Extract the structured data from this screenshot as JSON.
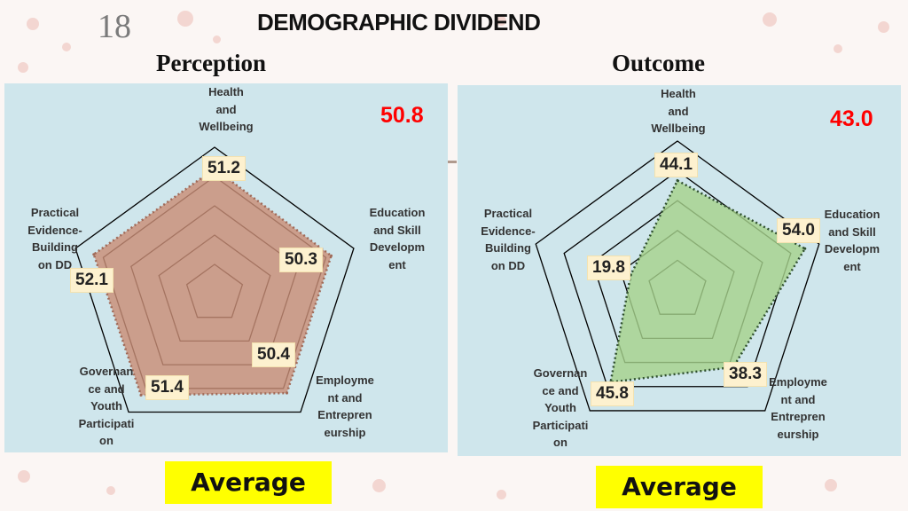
{
  "slide": {
    "number": "18",
    "title": "DEMOGRAPHIC DIVIDEND"
  },
  "colors": {
    "perception_fill": "#c98e76",
    "perception_stroke": "#a06a58",
    "outcome_fill": "#a6d28c",
    "outcome_stroke": "#2f4f2f",
    "grid": "#000000",
    "panel_bg": "#cfe6ec",
    "average_score": "#ff0000",
    "average_label_bg": "#ffff00"
  },
  "chart_data": [
    {
      "type": "radar",
      "title": "Perception",
      "axes": [
        "Health and Wellbeing",
        "Education and Skill Developm ent",
        "Employme nt and Entrepren eurship",
        "Governan ce and Youth Participati on",
        "Practical Evidence-Building on DD"
      ],
      "values": [
        51.2,
        50.3,
        50.4,
        51.4,
        52.1
      ],
      "value_labels": [
        "51.2",
        "50.3",
        "50.4",
        "51.4",
        "52.1"
      ],
      "average": "50.8",
      "average_label": "Average",
      "range": [
        0,
        60
      ],
      "grid_rings": 5,
      "outline": "dotted"
    },
    {
      "type": "radar",
      "title": "Outcome",
      "axes": [
        "Health and Wellbeing",
        "Education and Skill Developm ent",
        "Employme nt and Entrepren eurship",
        "Governan ce and Youth Participati on",
        "Practical Evidence-Building on DD"
      ],
      "values": [
        44.1,
        54.0,
        38.3,
        45.8,
        19.8
      ],
      "value_labels": [
        "44.1",
        "54.0",
        "38.3",
        "45.8",
        "19.8"
      ],
      "average": "43.0",
      "average_label": "Average",
      "range": [
        0,
        60
      ],
      "grid_rings": 5,
      "outline": "dotted"
    }
  ],
  "axis_label_lines": {
    "health": [
      "Health",
      "and",
      "Wellbeing"
    ],
    "education": [
      "Education",
      "and Skill",
      "Developm",
      "ent"
    ],
    "employment": [
      "Employme",
      "nt and",
      "Entrepren",
      "eurship"
    ],
    "governance": [
      "Governan",
      "ce and",
      "Youth",
      "Participati",
      "on"
    ],
    "practical": [
      "Practical",
      "Evidence-",
      "Building",
      "on DD"
    ]
  }
}
